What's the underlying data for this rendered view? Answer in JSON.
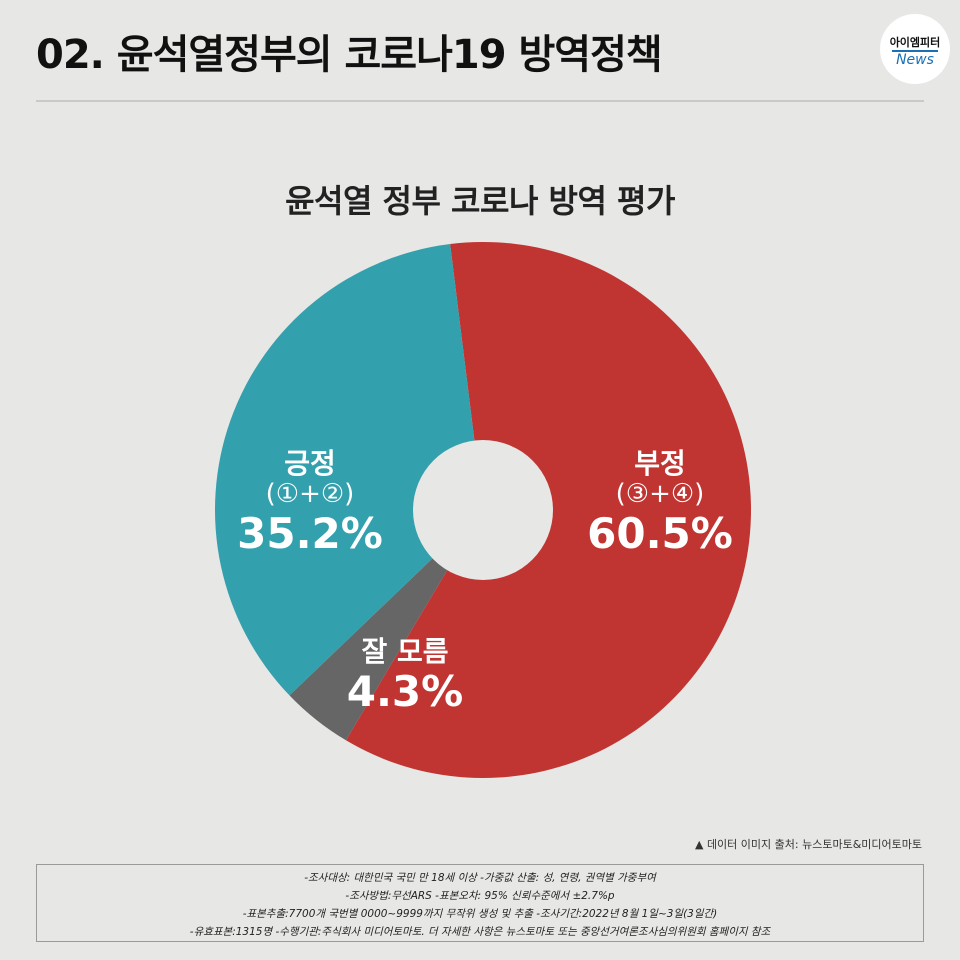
{
  "header": {
    "title": "02. 윤석열정부의 코로나19 방역정책",
    "logo_top": "아이엠피터",
    "logo_bottom": "News"
  },
  "chart_data": {
    "type": "pie",
    "title": "윤석열 정부 코로나 방역 평가",
    "donut": true,
    "slices": [
      {
        "name": "부정",
        "sub": "(③+④)",
        "value": 60.5,
        "display": "60.5%",
        "color": "#c03532"
      },
      {
        "name": "잘 모름",
        "sub": "",
        "value": 4.3,
        "display": "4.3%",
        "color": "#666666"
      },
      {
        "name": "긍정",
        "sub": "(①+②)",
        "value": 35.2,
        "display": "35.2%",
        "color": "#33a0ad"
      }
    ]
  },
  "source": "▲ 데이터 이미지 출처: 뉴스토마토&미디어토마토",
  "notes": [
    "-조사대상: 대한민국 국민 만 18세 이상  -가중값 산출: 성, 연령, 권역별 가중부여",
    "-조사방법:무선ARS -표본오차: 95% 신뢰수준에서 ±2.7%p",
    "-표본추출:7700개 국번별 0000~9999까지 무작위 생성 및 추출 -조사기간:2022년 8월 1일~3일(3일간)",
    "-유효표본:1315명 -수행기관:주식회사 미디어토마토. 더 자세한 사항은 뉴스토마토 또는 중앙선거여론조사심의위원회 홈페이지 참조"
  ]
}
